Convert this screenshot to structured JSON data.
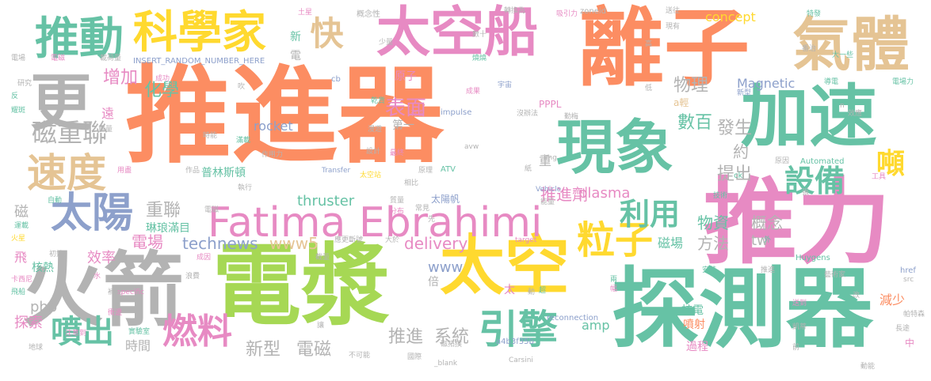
{
  "palette": {
    "orange": "#fc8d62",
    "teal": "#66c2a5",
    "purple": "#8da0cb",
    "pink": "#e78ac3",
    "green": "#a6d854",
    "yellow": "#ffd92f",
    "tan": "#e5c494",
    "gray": "#b3b3b3"
  },
  "words": [
    {
      "text": "推進器",
      "color": "orange"
    },
    {
      "text": "推力",
      "color": "pink"
    },
    {
      "text": "離子",
      "color": "orange"
    },
    {
      "text": "電漿",
      "color": "green"
    },
    {
      "text": "探測器",
      "color": "teal"
    },
    {
      "text": "火箭",
      "color": "gray"
    },
    {
      "text": "太空船",
      "color": "pink"
    },
    {
      "text": "加速",
      "color": "teal"
    },
    {
      "text": "現象",
      "color": "teal"
    },
    {
      "text": "太空",
      "color": "yellow"
    },
    {
      "text": "氣體",
      "color": "tan"
    },
    {
      "text": "Fatima Ebrahimi",
      "color": "pink"
    },
    {
      "text": "更",
      "color": "gray"
    },
    {
      "text": "科學家",
      "color": "yellow"
    },
    {
      "text": "推動",
      "color": "teal"
    },
    {
      "text": "速度",
      "color": "tan"
    },
    {
      "text": "太陽",
      "color": "purple"
    },
    {
      "text": "引擎",
      "color": "teal"
    },
    {
      "text": "粒子",
      "color": "yellow"
    },
    {
      "text": "快",
      "color": "tan"
    },
    {
      "text": "噴出",
      "color": "teal"
    },
    {
      "text": "燃料",
      "color": "pink"
    },
    {
      "text": "利用",
      "color": "teal"
    },
    {
      "text": "設備",
      "color": "teal"
    },
    {
      "text": "噸",
      "color": "yellow"
    },
    {
      "text": "磁重聯",
      "color": "gray"
    },
    {
      "text": "物理",
      "color": "gray"
    },
    {
      "text": "數百",
      "color": "teal"
    },
    {
      "text": "表面",
      "color": "pink"
    },
    {
      "text": "化學",
      "color": "teal"
    },
    {
      "text": "增加",
      "color": "pink"
    },
    {
      "text": "發生",
      "color": "gray"
    },
    {
      "text": "約",
      "color": "gray"
    },
    {
      "text": "提出",
      "color": "gray"
    },
    {
      "text": "推進劑",
      "color": "pink"
    },
    {
      "text": "重聯",
      "color": "gray"
    },
    {
      "text": "電場",
      "color": "pink"
    },
    {
      "text": "technews",
      "color": "purple"
    },
    {
      "text": "www5",
      "color": "tan"
    },
    {
      "text": "delivery",
      "color": "pink"
    },
    {
      "text": "物資",
      "color": "teal"
    },
    {
      "text": "方法",
      "color": "gray"
    },
    {
      "text": "概念",
      "color": "gray"
    },
    {
      "text": "tw",
      "color": "gray"
    },
    {
      "text": "新型",
      "color": "gray"
    },
    {
      "text": "電磁",
      "color": "gray"
    },
    {
      "text": "推進",
      "color": "gray"
    },
    {
      "text": "系統",
      "color": "gray"
    },
    {
      "text": "探索",
      "color": "pink"
    },
    {
      "text": "時間",
      "color": "gray"
    },
    {
      "text": "效率",
      "color": "pink"
    },
    {
      "text": "plasma",
      "color": "pink"
    },
    {
      "text": "thruster",
      "color": "teal"
    },
    {
      "text": "rocket",
      "color": "purple"
    },
    {
      "text": "Magnetic",
      "color": "purple"
    },
    {
      "text": "concept",
      "color": "yellow"
    },
    {
      "text": "www",
      "color": "purple"
    },
    {
      "text": "amp",
      "color": "teal"
    },
    {
      "text": "php",
      "color": "gray"
    },
    {
      "text": "減少",
      "color": "orange"
    },
    {
      "text": "磁場",
      "color": "teal"
    },
    {
      "text": "噴射",
      "color": "orange"
    },
    {
      "text": "過程",
      "color": "pink"
    },
    {
      "text": "核電",
      "color": "teal"
    },
    {
      "text": "普林斯頓",
      "color": "teal"
    },
    {
      "text": "琳琅滿目",
      "color": "teal"
    },
    {
      "text": "太陽帆",
      "color": "purple"
    },
    {
      "text": "原子",
      "color": "pink"
    },
    {
      "text": "第一",
      "color": "gray"
    },
    {
      "text": "遠",
      "color": "pink"
    },
    {
      "text": "重",
      "color": "gray"
    },
    {
      "text": "磁",
      "color": "gray"
    },
    {
      "text": "飛",
      "color": "pink"
    },
    {
      "text": "核熱",
      "color": "teal"
    },
    {
      "text": "倍",
      "color": "gray"
    },
    {
      "text": "太",
      "color": "pink"
    },
    {
      "text": "新",
      "color": "teal"
    },
    {
      "text": "電",
      "color": "gray"
    },
    {
      "text": "a輕",
      "color": "tan"
    },
    {
      "text": "PPPL",
      "color": "pink"
    },
    {
      "text": "impulse",
      "color": "purple"
    },
    {
      "text": "a4b3f35b",
      "color": "purple"
    },
    {
      "text": "INSERT_RANDOM_NUMBER_HERE",
      "color": "purple"
    },
    {
      "text": "zoneid",
      "color": "gray"
    },
    {
      "text": "reconnection",
      "color": "purple"
    },
    {
      "text": "Huygens",
      "color": "teal"
    },
    {
      "text": "Automated",
      "color": "teal"
    },
    {
      "text": "Transfer",
      "color": "purple"
    },
    {
      "text": "Vehicle",
      "color": "purple"
    },
    {
      "text": "ATV",
      "color": "teal"
    },
    {
      "text": "cb",
      "color": "purple"
    },
    {
      "text": "ck",
      "color": "teal"
    },
    {
      "text": "href",
      "color": "purple"
    },
    {
      "text": "src",
      "color": "gray"
    },
    {
      "text": "specific",
      "color": "pink"
    },
    {
      "text": "target",
      "color": "pink"
    },
    {
      "text": "img",
      "color": "gray"
    },
    {
      "text": "avw",
      "color": "gray"
    },
    {
      "text": "_blank",
      "color": "gray"
    },
    {
      "text": "Carsini",
      "color": "gray"
    },
    {
      "text": "概念性",
      "color": "gray"
    },
    {
      "text": "轉換為",
      "color": "gray"
    },
    {
      "text": "吸引力",
      "color": "pink"
    },
    {
      "text": "送往",
      "color": "gray"
    },
    {
      "text": "特發",
      "color": "teal"
    },
    {
      "text": "成果",
      "color": "pink"
    },
    {
      "text": "宇宙",
      "color": "purple"
    },
    {
      "text": "乾貨",
      "color": "teal"
    },
    {
      "text": "有否",
      "color": "pink"
    },
    {
      "text": "漫遊",
      "color": "gray"
    },
    {
      "text": "原理",
      "color": "gray"
    },
    {
      "text": "最終",
      "color": "pink"
    },
    {
      "text": "設計",
      "color": "gray"
    },
    {
      "text": "作用力",
      "color": "gray"
    },
    {
      "text": "滿載",
      "color": "teal"
    },
    {
      "text": "時能",
      "color": "gray"
    },
    {
      "text": "作品",
      "color": "gray"
    },
    {
      "text": "用盡",
      "color": "pink"
    },
    {
      "text": "成功",
      "color": "pink"
    },
    {
      "text": "重量",
      "color": "gray"
    },
    {
      "text": "研究",
      "color": "gray"
    },
    {
      "text": "耀斑",
      "color": "teal"
    },
    {
      "text": "載荷量",
      "color": "gray"
    },
    {
      "text": "電磁",
      "color": "pink"
    },
    {
      "text": "運載",
      "color": "teal"
    },
    {
      "text": "火星",
      "color": "yellow"
    },
    {
      "text": "卡西尼",
      "color": "pink"
    },
    {
      "text": "飛船",
      "color": "teal"
    },
    {
      "text": "地球",
      "color": "gray"
    },
    {
      "text": "注意到",
      "color": "pink"
    },
    {
      "text": "實驗室",
      "color": "teal"
    },
    {
      "text": "初始",
      "color": "gray"
    },
    {
      "text": "自動",
      "color": "teal"
    },
    {
      "text": "相比",
      "color": "gray"
    },
    {
      "text": "國際",
      "color": "gray"
    },
    {
      "text": "不可能",
      "color": "gray"
    },
    {
      "text": "磁拓撲",
      "color": "gray"
    },
    {
      "text": "截量",
      "color": "gray"
    },
    {
      "text": "成因",
      "color": "pink"
    },
    {
      "text": "執行",
      "color": "gray"
    },
    {
      "text": "質量",
      "color": "gray"
    },
    {
      "text": "分布",
      "color": "pink"
    },
    {
      "text": "常見",
      "color": "gray"
    },
    {
      "text": "能量",
      "color": "gray"
    },
    {
      "text": "藝術家",
      "color": "gray"
    },
    {
      "text": "帕特森",
      "color": "gray"
    },
    {
      "text": "長途",
      "color": "gray"
    },
    {
      "text": "動能",
      "color": "gray"
    },
    {
      "text": "凱蒂",
      "color": "gray"
    },
    {
      "text": "送到",
      "color": "pink"
    },
    {
      "text": "推進",
      "color": "gray"
    },
    {
      "text": "安裝",
      "color": "teal"
    },
    {
      "text": "工具",
      "color": "pink"
    },
    {
      "text": "原因",
      "color": "gray"
    },
    {
      "text": "技術",
      "color": "teal"
    },
    {
      "text": "效應",
      "color": "gray"
    },
    {
      "text": "大一些",
      "color": "teal"
    },
    {
      "text": "電場力",
      "color": "teal"
    },
    {
      "text": "導電",
      "color": "teal"
    },
    {
      "text": "番治",
      "color": "gray"
    },
    {
      "text": "少量",
      "color": "gray"
    },
    {
      "text": "數十",
      "color": "gray"
    },
    {
      "text": "土星",
      "color": "pink"
    },
    {
      "text": "燒燒",
      "color": "teal"
    },
    {
      "text": "現有",
      "color": "gray"
    },
    {
      "text": "新型",
      "color": "purple"
    },
    {
      "text": "沒辦法",
      "color": "gray"
    },
    {
      "text": "勤梅",
      "color": "gray"
    },
    {
      "text": "中",
      "color": "pink"
    },
    {
      "text": "外",
      "color": "teal"
    },
    {
      "text": "吹",
      "color": "gray"
    },
    {
      "text": "反",
      "color": "teal"
    },
    {
      "text": "水",
      "color": "pink"
    },
    {
      "text": "補充",
      "color": "gray"
    },
    {
      "text": "浪費",
      "color": "gray"
    },
    {
      "text": "衝邊",
      "color": "pink"
    },
    {
      "text": "太空站",
      "color": "yellow"
    },
    {
      "text": "高",
      "color": "gray"
    },
    {
      "text": "低",
      "color": "gray"
    },
    {
      "text": "讓",
      "color": "gray"
    },
    {
      "text": "n",
      "color": "gray"
    },
    {
      "text": "張",
      "color": "gray"
    },
    {
      "text": "紙",
      "color": "gray"
    },
    {
      "text": "兩",
      "color": "teal"
    },
    {
      "text": "幅",
      "color": "pink"
    },
    {
      "text": "超",
      "color": "teal"
    },
    {
      "text": "前",
      "color": "gray"
    },
    {
      "text": "動",
      "color": "gray"
    },
    {
      "text": "先",
      "color": "gray"
    },
    {
      "text": "大於",
      "color": "gray"
    },
    {
      "text": "應更斷號",
      "color": "gray"
    },
    {
      "text": "改",
      "color": "gray"
    },
    {
      "text": "電磁",
      "color": "gray"
    },
    {
      "text": "電場",
      "color": "gray"
    }
  ]
}
